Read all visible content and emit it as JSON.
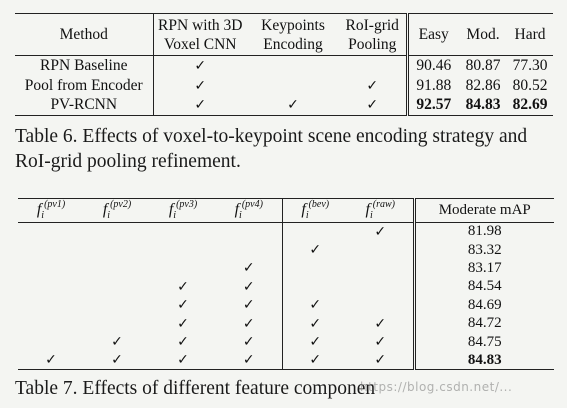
{
  "table6": {
    "headers": {
      "method": "Method",
      "rpn_line1": "RPN with 3D",
      "rpn_line2": "Voxel CNN",
      "kp_line1": "Keypoints",
      "kp_line2": "Encoding",
      "roi_line1": "RoI-grid",
      "roi_line2": "Pooling",
      "easy": "Easy",
      "mod": "Mod.",
      "hard": "Hard"
    },
    "rows": [
      {
        "method": "RPN Baseline",
        "rpn": "✓",
        "kp": "",
        "roi": "",
        "easy": "90.46",
        "mod": "80.87",
        "hard": "77.30"
      },
      {
        "method": "Pool from Encoder",
        "rpn": "✓",
        "kp": "",
        "roi": "✓",
        "easy": "91.88",
        "mod": "82.86",
        "hard": "80.52"
      },
      {
        "method": "PV-RCNN",
        "rpn": "✓",
        "kp": "✓",
        "roi": "✓",
        "easy": "92.57",
        "mod": "84.83",
        "hard": "82.69"
      }
    ],
    "caption": "Table 6. Effects of voxel-to-keypoint scene encoding strategy and RoI-grid pooling refinement."
  },
  "table7": {
    "headers": {
      "f_base": "f",
      "pv1": "(pv1)",
      "pv2": "(pv2)",
      "pv3": "(pv3)",
      "pv4": "(pv4)",
      "bev": "(bev)",
      "raw": "(raw)",
      "sub_i": "i",
      "map": "Moderate mAP"
    },
    "rows": [
      {
        "pv1": "",
        "pv2": "",
        "pv3": "",
        "pv4": "",
        "bev": "",
        "raw": "✓",
        "map": "81.98"
      },
      {
        "pv1": "",
        "pv2": "",
        "pv3": "",
        "pv4": "",
        "bev": "✓",
        "raw": "",
        "map": "83.32"
      },
      {
        "pv1": "",
        "pv2": "",
        "pv3": "",
        "pv4": "✓",
        "bev": "",
        "raw": "",
        "map": "83.17"
      },
      {
        "pv1": "",
        "pv2": "",
        "pv3": "✓",
        "pv4": "✓",
        "bev": "",
        "raw": "",
        "map": "84.54"
      },
      {
        "pv1": "",
        "pv2": "",
        "pv3": "✓",
        "pv4": "✓",
        "bev": "✓",
        "raw": "",
        "map": "84.69"
      },
      {
        "pv1": "",
        "pv2": "",
        "pv3": "✓",
        "pv4": "✓",
        "bev": "✓",
        "raw": "✓",
        "map": "84.72"
      },
      {
        "pv1": "",
        "pv2": "✓",
        "pv3": "✓",
        "pv4": "✓",
        "bev": "✓",
        "raw": "✓",
        "map": "84.75"
      },
      {
        "pv1": "✓",
        "pv2": "✓",
        "pv3": "✓",
        "pv4": "✓",
        "bev": "✓",
        "raw": "✓",
        "map": "84.83"
      }
    ],
    "caption": "Table 7. Effects of different feature componen"
  },
  "watermark": "https://blog.csdn.net/..."
}
